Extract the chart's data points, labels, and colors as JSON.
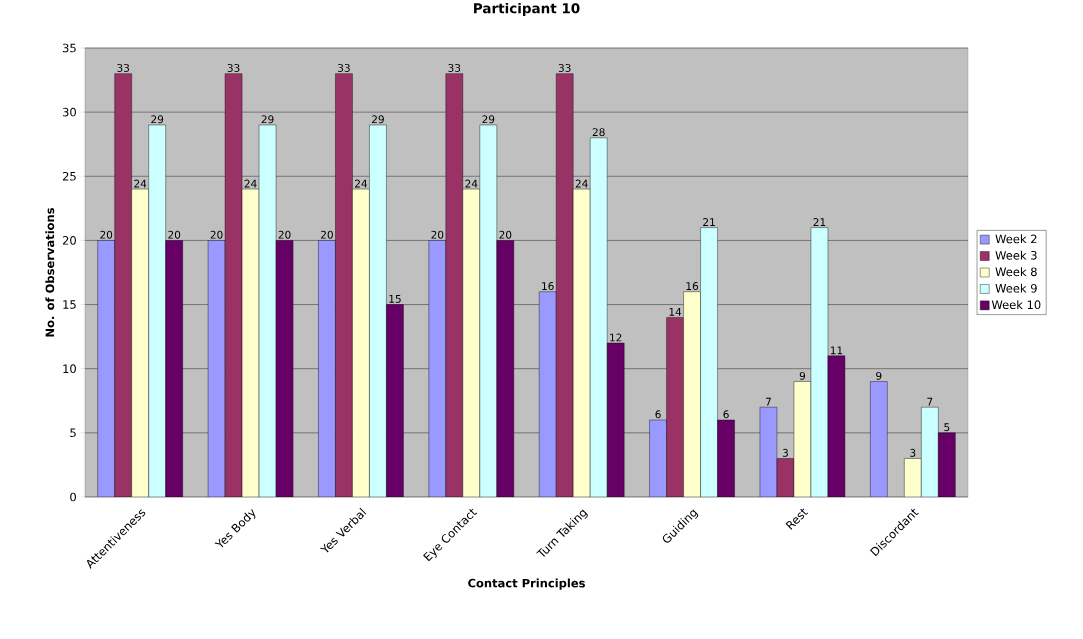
{
  "chart_data": {
    "type": "bar",
    "title": "Participant 10",
    "xlabel": "Contact Principles",
    "ylabel": "No. of Observations",
    "categories": [
      "Attentiveness",
      "Yes Body",
      "Yes Verbal",
      "Eye Contact",
      "Turn Taking",
      "Guiding",
      "Rest",
      "Discordant"
    ],
    "series": [
      {
        "name": "Week 2",
        "color": "#9999ff",
        "values": [
          20,
          20,
          20,
          20,
          16,
          6,
          7,
          9
        ],
        "value_labels": [
          "20",
          "20",
          "20",
          "20",
          "16",
          "6",
          "7",
          "9"
        ]
      },
      {
        "name": "Week 3",
        "color": "#993366",
        "values": [
          33,
          33,
          33,
          33,
          33,
          14,
          3,
          null
        ],
        "value_labels": [
          "33",
          "33",
          "33",
          "33",
          "33",
          "14",
          "3",
          null
        ]
      },
      {
        "name": "Week 8",
        "color": "#ffffcc",
        "values": [
          24,
          24,
          24,
          24,
          24,
          16,
          9,
          3
        ],
        "value_labels": [
          "24",
          "24",
          "24",
          "24",
          "24",
          "16",
          "9",
          "3"
        ]
      },
      {
        "name": "Week 9",
        "color": "#ccffff",
        "values": [
          29,
          29,
          29,
          29,
          28,
          21,
          21,
          7
        ],
        "value_labels": [
          "29",
          "29",
          "29",
          "29",
          "28",
          "21",
          "21",
          "7"
        ]
      },
      {
        "name": "Week 10",
        "color": "#660066",
        "values": [
          20,
          20,
          15,
          20,
          12,
          6,
          11,
          5
        ],
        "value_labels": [
          "20",
          "20",
          "15",
          "20",
          "12",
          "6",
          "11",
          "5"
        ]
      }
    ],
    "ylim": [
      0,
      35
    ],
    "yticks": [
      0,
      5,
      10,
      15,
      20,
      25,
      30,
      35
    ],
    "grid": "y",
    "legend": "right"
  }
}
